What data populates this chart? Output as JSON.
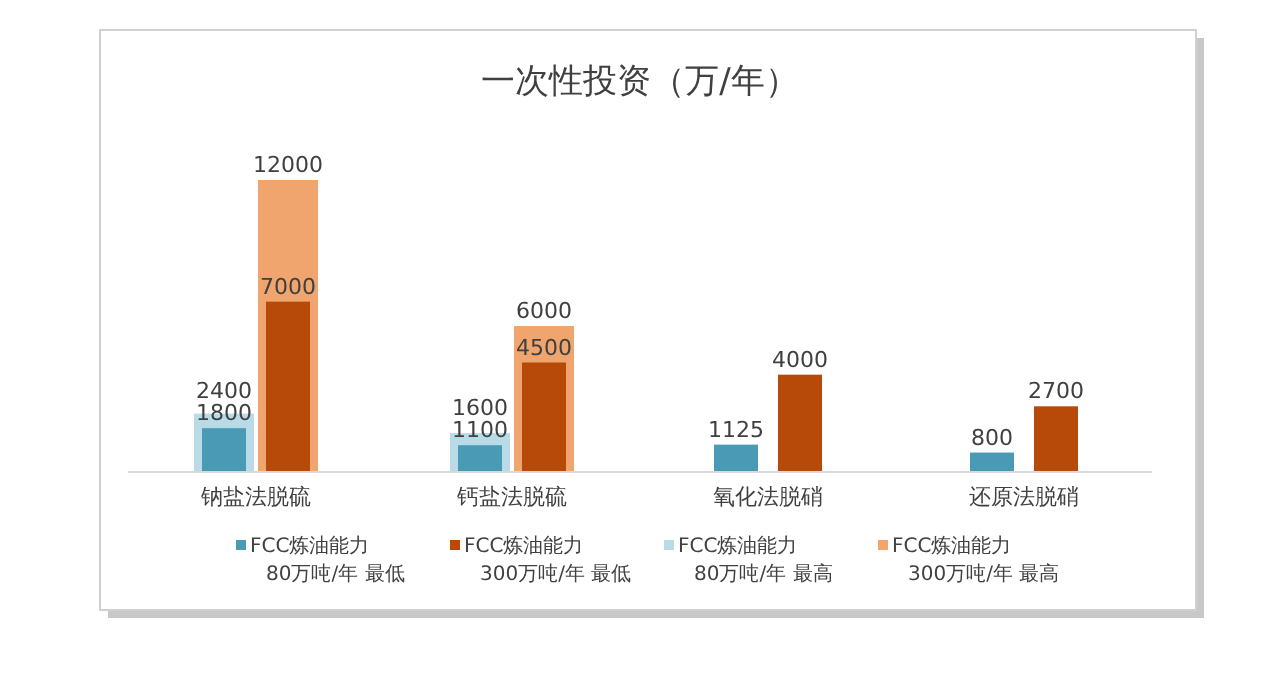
{
  "chart_data": {
    "type": "bar",
    "title": "一次性投资（万/年）",
    "categories": [
      "钠盐法脱硫",
      "钙盐法脱硫",
      "氧化法脱硝",
      "还原法脱硝"
    ],
    "legend": "bottom",
    "data_labels": true,
    "series": [
      {
        "name": "FCC炼油能力 80万吨/年 最低",
        "color": "#4a9ab5",
        "values": [
          1800,
          1100,
          1125,
          800
        ]
      },
      {
        "name": "FCC炼油能力 300万吨/年 最低",
        "color": "#b84a09",
        "values": [
          7000,
          4500,
          4000,
          2700
        ]
      },
      {
        "name": "FCC炼油能力 80万吨/年 最高",
        "color": "#b9dbe8",
        "values": [
          2400,
          1600,
          null,
          null
        ]
      },
      {
        "name": "FCC炼油能力 300万吨/年 最高",
        "color": "#f0a46e",
        "values": [
          12000,
          6000,
          null,
          null
        ]
      }
    ]
  }
}
